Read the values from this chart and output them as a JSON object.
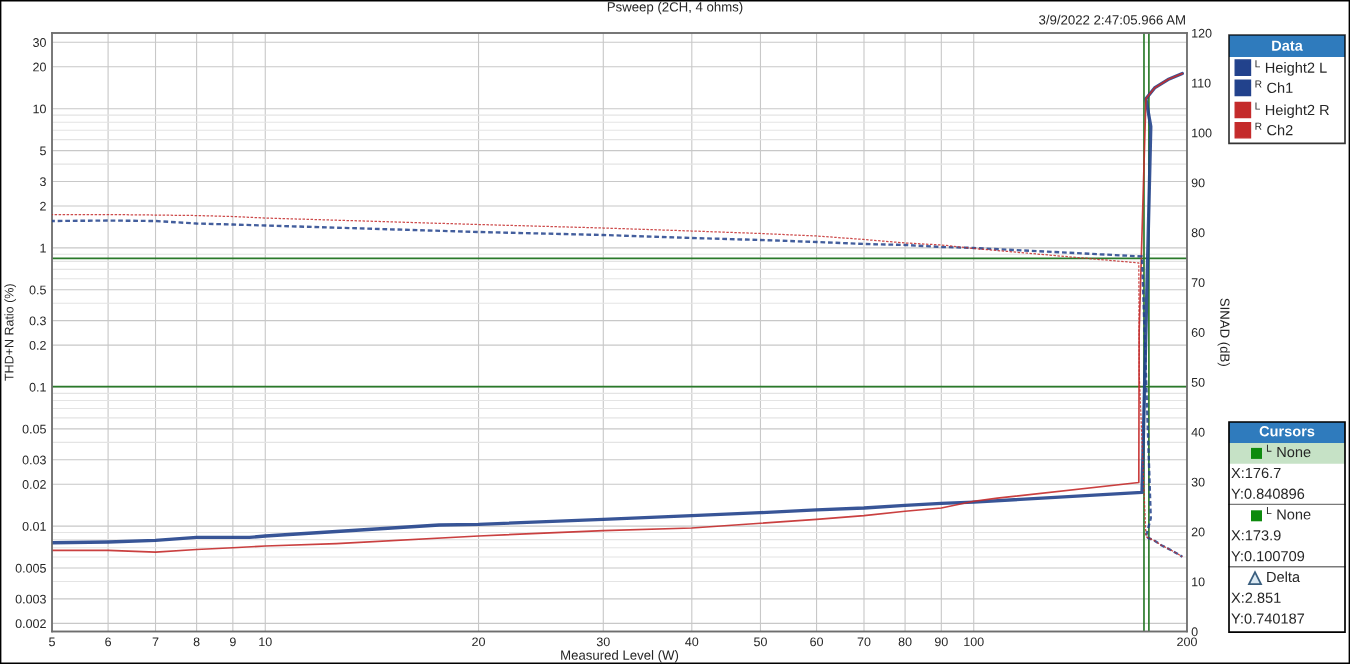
{
  "chart_data": {
    "type": "line",
    "title": "Psweep (2CH, 4 ohms)",
    "xlabel": "Measured Level (W)",
    "ylabel": "THD+N Ratio (%)",
    "y2label": "SINAD (dB)",
    "legend_title": "Data",
    "legend": "top right",
    "grid": true,
    "log": "xy",
    "xlim": [
      5,
      200
    ],
    "xticks": [
      5,
      6,
      7,
      8,
      9,
      10,
      20,
      30,
      40,
      50,
      60,
      70,
      80,
      90,
      100,
      200
    ],
    "ylim": [
      0.00175,
      35
    ],
    "yticks": [
      0.002,
      0.003,
      {
        "value": 0.004,
        "label": null
      },
      0.005,
      {
        "value": 0.006,
        "label": null
      },
      {
        "value": 0.007,
        "label": null
      },
      {
        "value": 0.008,
        "label": null
      },
      {
        "value": 0.009,
        "label": null
      },
      0.01,
      0.02,
      0.03,
      {
        "value": 0.04,
        "label": null
      },
      0.05,
      {
        "value": 0.06,
        "label": null
      },
      {
        "value": 0.07,
        "label": null
      },
      {
        "value": 0.08,
        "label": null
      },
      {
        "value": 0.09,
        "label": null
      },
      0.1,
      0.2,
      0.3,
      {
        "value": 0.4,
        "label": null
      },
      0.5,
      {
        "value": 0.6,
        "label": null
      },
      {
        "value": 0.7,
        "label": null
      },
      {
        "value": 0.8,
        "label": null
      },
      {
        "value": 0.9,
        "label": null
      },
      1,
      2,
      3,
      {
        "value": 4,
        "label": null
      },
      5,
      {
        "value": 6,
        "label": null
      },
      {
        "value": 7,
        "label": null
      },
      {
        "value": 8,
        "label": null
      },
      {
        "value": 9,
        "label": null
      },
      10,
      20,
      30
    ],
    "y2lim": [
      0,
      120
    ],
    "y2ticks": [
      0,
      10,
      20,
      30,
      40,
      50,
      60,
      70,
      80,
      90,
      100,
      110,
      120
    ],
    "series": [
      {
        "name": "$^{L}$ Height2 L",
        "color": "#22428c",
        "line_style": "solid",
        "x": [
          5,
          6,
          7,
          8,
          9.5,
          10,
          17.6,
          20,
          30,
          40,
          50,
          60,
          70,
          80,
          90,
          100,
          172.8,
          177.8,
          175.0,
          180,
          188,
          197
        ],
        "values": [
          0.0076,
          0.0077,
          0.0079,
          0.0083,
          0.0083,
          0.0085,
          0.0102,
          0.0103,
          0.0112,
          0.0119,
          0.0125,
          0.0131,
          0.0135,
          0.0141,
          0.0146,
          0.0149,
          0.0175,
          7.46,
          11.8,
          14.1,
          16.2,
          17.9
        ]
      },
      {
        "name": "$^{R}$ Ch1",
        "color": "#22428c",
        "axis": "y2",
        "line_style": "dashed",
        "x": [
          5,
          6,
          7,
          8,
          9,
          10,
          20,
          30,
          40,
          50,
          60,
          70,
          80,
          90,
          100,
          172.8,
          177.8,
          175.0,
          180,
          184,
          190,
          197
        ],
        "values": [
          82.3,
          82.4,
          82.3,
          81.8,
          81.6,
          81.4,
          80.1,
          79.5,
          78.9,
          78.5,
          78.1,
          77.7,
          77.5,
          77.1,
          76.9,
          75.2,
          22.7,
          19.0,
          18.2,
          17.3,
          16.3,
          15.0
        ]
      },
      {
        "name": "$^{L}$ Height2 R",
        "color": "#c42b2b",
        "line_style": "solid",
        "x": [
          5,
          6,
          7,
          8,
          9,
          10,
          12.6,
          20,
          30,
          40,
          50,
          60,
          70,
          80,
          90,
          100,
          108,
          171.0,
          171.2,
          175.0,
          180,
          188,
          197
        ],
        "values": [
          0.0067,
          0.0067,
          0.0065,
          0.0068,
          0.007,
          0.0072,
          0.0075,
          0.0085,
          0.0093,
          0.0097,
          0.0105,
          0.0112,
          0.0119,
          0.0128,
          0.0135,
          0.0151,
          0.0159,
          0.0206,
          0.25,
          11.8,
          14.1,
          16.2,
          17.9
        ]
      },
      {
        "name": "$^{R}$ Ch2",
        "color": "#c42b2b",
        "axis": "y2",
        "line_style": "dashed",
        "x": [
          5,
          6,
          7,
          8,
          9,
          10,
          20,
          30,
          40,
          50,
          60,
          70,
          80,
          90,
          100,
          171.0,
          171.2,
          175.0,
          180,
          184,
          190,
          197
        ],
        "values": [
          83.6,
          83.6,
          83.5,
          83.4,
          83.2,
          82.9,
          81.6,
          80.9,
          80.3,
          79.8,
          79.3,
          78.6,
          77.9,
          77.5,
          76.8,
          73.9,
          52,
          19.0,
          18.2,
          17.3,
          16.3,
          15.0
        ]
      }
    ],
    "ref_lines": [
      {
        "axis": "x",
        "value": 176.7,
        "color": "#2a7a2a"
      },
      {
        "axis": "x",
        "value": 173.9,
        "color": "#2a7a2a"
      },
      {
        "axis": "y",
        "value": 0.840896,
        "color": "#2a7a2a"
      },
      {
        "axis": "y",
        "value": 0.100709,
        "color": "#2a7a2a"
      }
    ],
    "annotations": [
      "3/9/2022 2:47:05.966 AM",
      "Cursors",
      "$^{L}$ None",
      "X:176.7",
      "Y:0.840896",
      "$^{L}$ None",
      "X:173.9",
      "Y:0.100709",
      "Delta",
      "X:2.851",
      "Y:0.740187"
    ]
  }
}
